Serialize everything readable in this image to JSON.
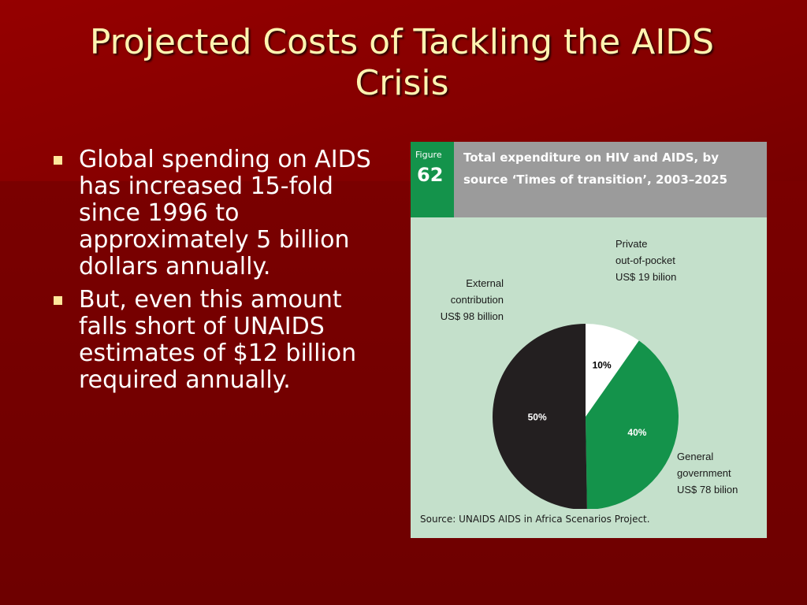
{
  "slide": {
    "title": "Projected Costs of Tackling the AIDS Crisis",
    "bullets": [
      "Global spending on AIDS has increased 15-fold since 1996 to approximately 5 billion dollars annually.",
      "But, even this amount falls short of UNAIDS estimates of $12 billion required annually."
    ]
  },
  "figure": {
    "badge_word": "Figure",
    "badge_number": "62",
    "title": "Total expenditure on HIV and AIDS, by source ‘Times of transition’, 2003–2025",
    "source": "Source:  UNAIDS AIDS in Africa Scenarios Project."
  },
  "colors": {
    "private": "#ffffff",
    "government": "#14934b",
    "external": "#231f20"
  },
  "chart_data": {
    "type": "pie",
    "title": "Total expenditure on HIV and AIDS, by source ‘Times of transition’, 2003–2025",
    "slices": [
      {
        "label": [
          "Private",
          "out-of-pocket",
          "US$ 19 bilion"
        ],
        "value": 19,
        "percent_label": "10%",
        "color": "#ffffff",
        "text_color": "#000000"
      },
      {
        "label": [
          "General",
          "government",
          "US$ 78 bilion"
        ],
        "value": 78,
        "percent_label": "40%",
        "color": "#14934b",
        "text_color": "#ffffff"
      },
      {
        "label": [
          "External",
          "contribution",
          "US$ 98 billion"
        ],
        "value": 98,
        "percent_label": "50%",
        "color": "#231f20",
        "text_color": "#ffffff"
      }
    ]
  }
}
